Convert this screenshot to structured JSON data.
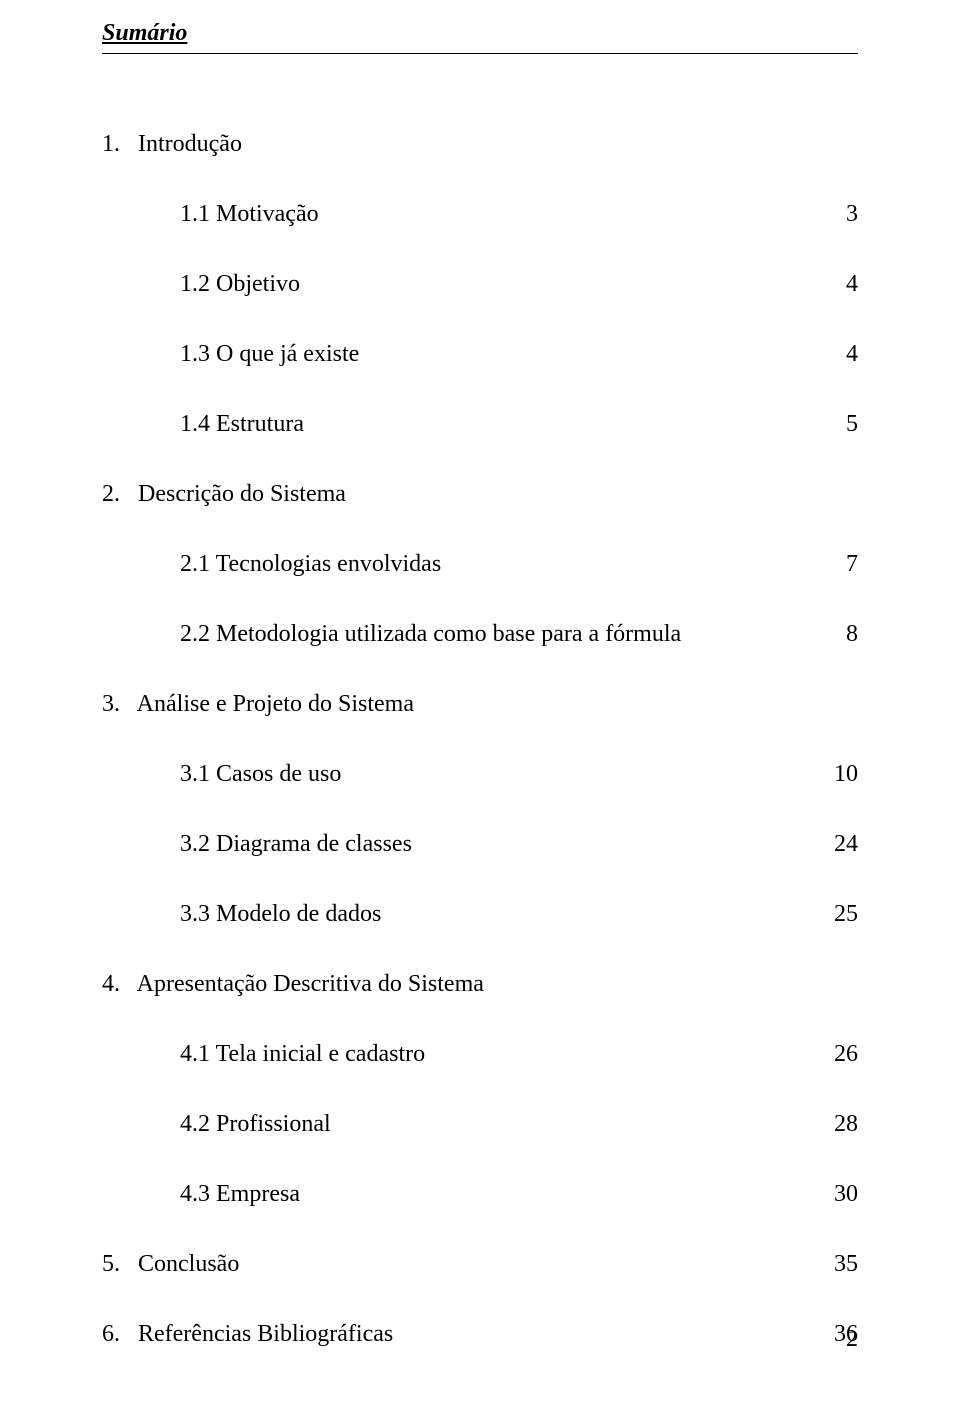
{
  "title": "Sumário",
  "footer_page_number": "2",
  "toc": [
    {
      "label": "1.   Introdução",
      "page": "",
      "indent": "lv0"
    },
    {
      "label": "1.1 Motivação",
      "page": "3",
      "indent": "lv2"
    },
    {
      "label": "1.2 Objetivo",
      "page": "4",
      "indent": "lv2"
    },
    {
      "label": "1.3 O que já existe",
      "page": "4",
      "indent": "lv2"
    },
    {
      "label": "1.4 Estrutura",
      "page": "5",
      "indent": "lv2"
    },
    {
      "label": "2.   Descrição do Sistema",
      "page": "",
      "indent": "lv0"
    },
    {
      "label": "2.1 Tecnologias envolvidas",
      "page": "7",
      "indent": "lv2"
    },
    {
      "label": "2.2 Metodologia utilizada como base para a fórmula",
      "page": "8",
      "indent": "lv2"
    },
    {
      "label": "3.   Análise e Projeto do Sistema",
      "page": "",
      "indent": "lv0"
    },
    {
      "label": "3.1 Casos de uso",
      "page": "10",
      "indent": "lv2"
    },
    {
      "label": "3.2 Diagrama de classes",
      "page": "24",
      "indent": "lv2"
    },
    {
      "label": "3.3 Modelo de dados",
      "page": "25",
      "indent": "lv2"
    },
    {
      "label": "4.   Apresentação Descritiva do Sistema",
      "page": "",
      "indent": "lv0"
    },
    {
      "label": "4.1 Tela inicial e cadastro",
      "page": "26",
      "indent": "lv2"
    },
    {
      "label": "4.2 Profissional",
      "page": "28",
      "indent": "lv2"
    },
    {
      "label": "4.3 Empresa",
      "page": "30",
      "indent": "lv2"
    },
    {
      "label": "5.   Conclusão",
      "page": "35",
      "indent": "lv0"
    },
    {
      "label": "6.   Referências Bibliográficas",
      "page": "36",
      "indent": "lv0"
    }
  ],
  "colors": {
    "text": "#000000",
    "background": "#ffffff",
    "rule": "#000000"
  },
  "typography": {
    "title_fontsize_pt": 18,
    "body_fontsize_pt": 18,
    "font_family": "Times New Roman"
  }
}
